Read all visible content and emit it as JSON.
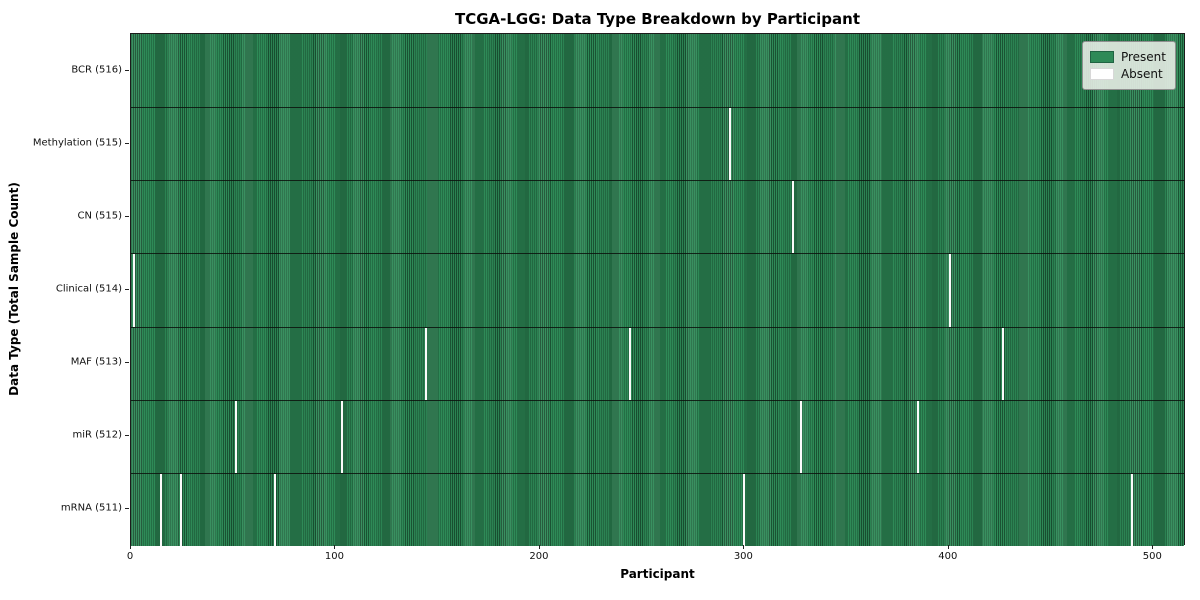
{
  "chart_data": {
    "type": "heatmap",
    "title": "TCGA-LGG: Data Type Breakdown by Participant",
    "xlabel": "Participant",
    "ylabel": "Data Type (Total Sample Count)",
    "x_range": [
      0,
      516
    ],
    "n_participants": 516,
    "x_ticks": [
      0,
      100,
      200,
      300,
      400,
      500
    ],
    "grid": false,
    "legend": {
      "position": "upper-right",
      "entries": [
        {
          "label": "Present",
          "color": "#2e8a57"
        },
        {
          "label": "Absent",
          "color": "#ffffff"
        }
      ]
    },
    "rows": [
      {
        "label": "BCR (516)",
        "data_type": "BCR",
        "sample_count": 516,
        "absent_participants": []
      },
      {
        "label": "Methylation (515)",
        "data_type": "Methylation",
        "sample_count": 515,
        "absent_participants": [
          293
        ]
      },
      {
        "label": "CN (515)",
        "data_type": "CN",
        "sample_count": 515,
        "absent_participants": [
          324
        ]
      },
      {
        "label": "Clinical (514)",
        "data_type": "Clinical",
        "sample_count": 514,
        "absent_participants": [
          1,
          401
        ]
      },
      {
        "label": "MAF (513)",
        "data_type": "MAF",
        "sample_count": 513,
        "absent_participants": [
          144,
          244,
          427
        ]
      },
      {
        "label": "miR (512)",
        "data_type": "miR",
        "sample_count": 512,
        "absent_participants": [
          51,
          103,
          328,
          385
        ]
      },
      {
        "label": "mRNA (511)",
        "data_type": "mRNA",
        "sample_count": 511,
        "absent_participants": [
          14,
          24,
          70,
          300,
          490
        ]
      }
    ],
    "colors": {
      "present": "#2e8a57",
      "present_stripe": "#14402a",
      "absent": "#ffffff",
      "row_divider": "#14180f",
      "plot_border": "#1c1c1c",
      "legend_background": "#e6ece4"
    }
  }
}
